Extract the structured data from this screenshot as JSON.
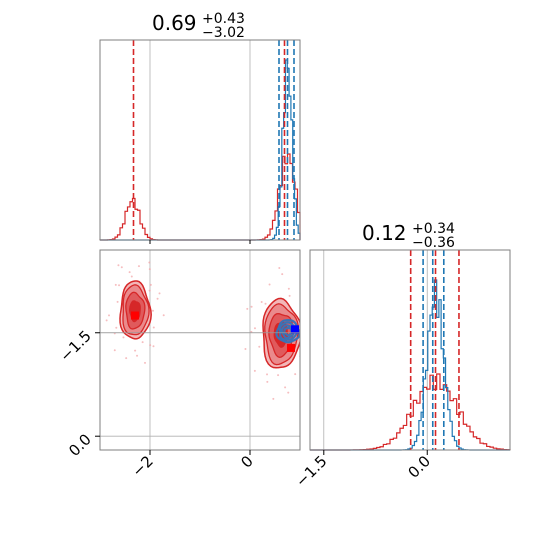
{
  "figure": {
    "panels": {
      "top_left": {
        "title_median": "0.69",
        "title_plus": "+0.43",
        "title_minus": "−3.02"
      },
      "bottom_right": {
        "title_median": "0.12",
        "title_plus": "+0.34",
        "title_minus": "−0.36"
      }
    },
    "tick_labels": {
      "x_param1": [
        "−2",
        "0"
      ],
      "y_param2": [
        "0.0",
        "−1.5"
      ],
      "x_param2": [
        "−1.5",
        "0.0"
      ]
    }
  },
  "chart_data": {
    "type": "corner",
    "parameters": [
      "param1",
      "param2"
    ],
    "series": [
      {
        "color": "#d62728"
      },
      {
        "color": "#1f77b4"
      }
    ],
    "param1": {
      "range": [
        -3.0,
        1.0
      ],
      "ticks": [
        -2,
        0
      ],
      "hist_red": {
        "modes": [
          {
            "mu": -2.35,
            "sigma": 0.14,
            "weight": 0.32
          },
          {
            "mu": 0.75,
            "sigma": 0.16,
            "weight": 0.68
          }
        ],
        "peak_fraction": 0.43
      },
      "hist_blue": {
        "mu": 0.75,
        "sigma": 0.09,
        "peak_fraction": 0.9
      },
      "quantiles_red": [
        -2.33,
        0.69,
        1.12
      ],
      "quantiles_blue": [
        0.58,
        0.75,
        0.88
      ],
      "truth": 0.82
    },
    "param2": {
      "range": [
        -1.7,
        1.2
      ],
      "ticks": [
        -1.5,
        0.0
      ],
      "hist_red": {
        "modes": [
          {
            "mu": 0.12,
            "sigma": 0.32,
            "weight": 1.0
          }
        ],
        "peak_fraction": 0.38
      },
      "hist_blue": {
        "mu": 0.12,
        "sigma": 0.12,
        "peak_fraction": 0.85
      },
      "quantiles_red": [
        -0.24,
        0.12,
        0.46
      ],
      "quantiles_blue": [
        -0.06,
        0.08,
        0.24
      ],
      "truth": 0.0
    },
    "joint": {
      "red_clusters": [
        {
          "x": -2.3,
          "y": 0.32,
          "sx": 0.3,
          "sy": 0.42
        },
        {
          "x": 0.62,
          "y": -0.02,
          "sx": 0.38,
          "sy": 0.5
        }
      ],
      "blue_cluster": {
        "x": 0.76,
        "y": 0.02,
        "sx": 0.22,
        "sy": 0.16
      },
      "red_points": [
        {
          "x": -2.3,
          "y": 0.25
        },
        {
          "x": 0.82,
          "y": -0.22
        }
      ],
      "blue_point": {
        "x": 0.9,
        "y": 0.05
      }
    }
  }
}
